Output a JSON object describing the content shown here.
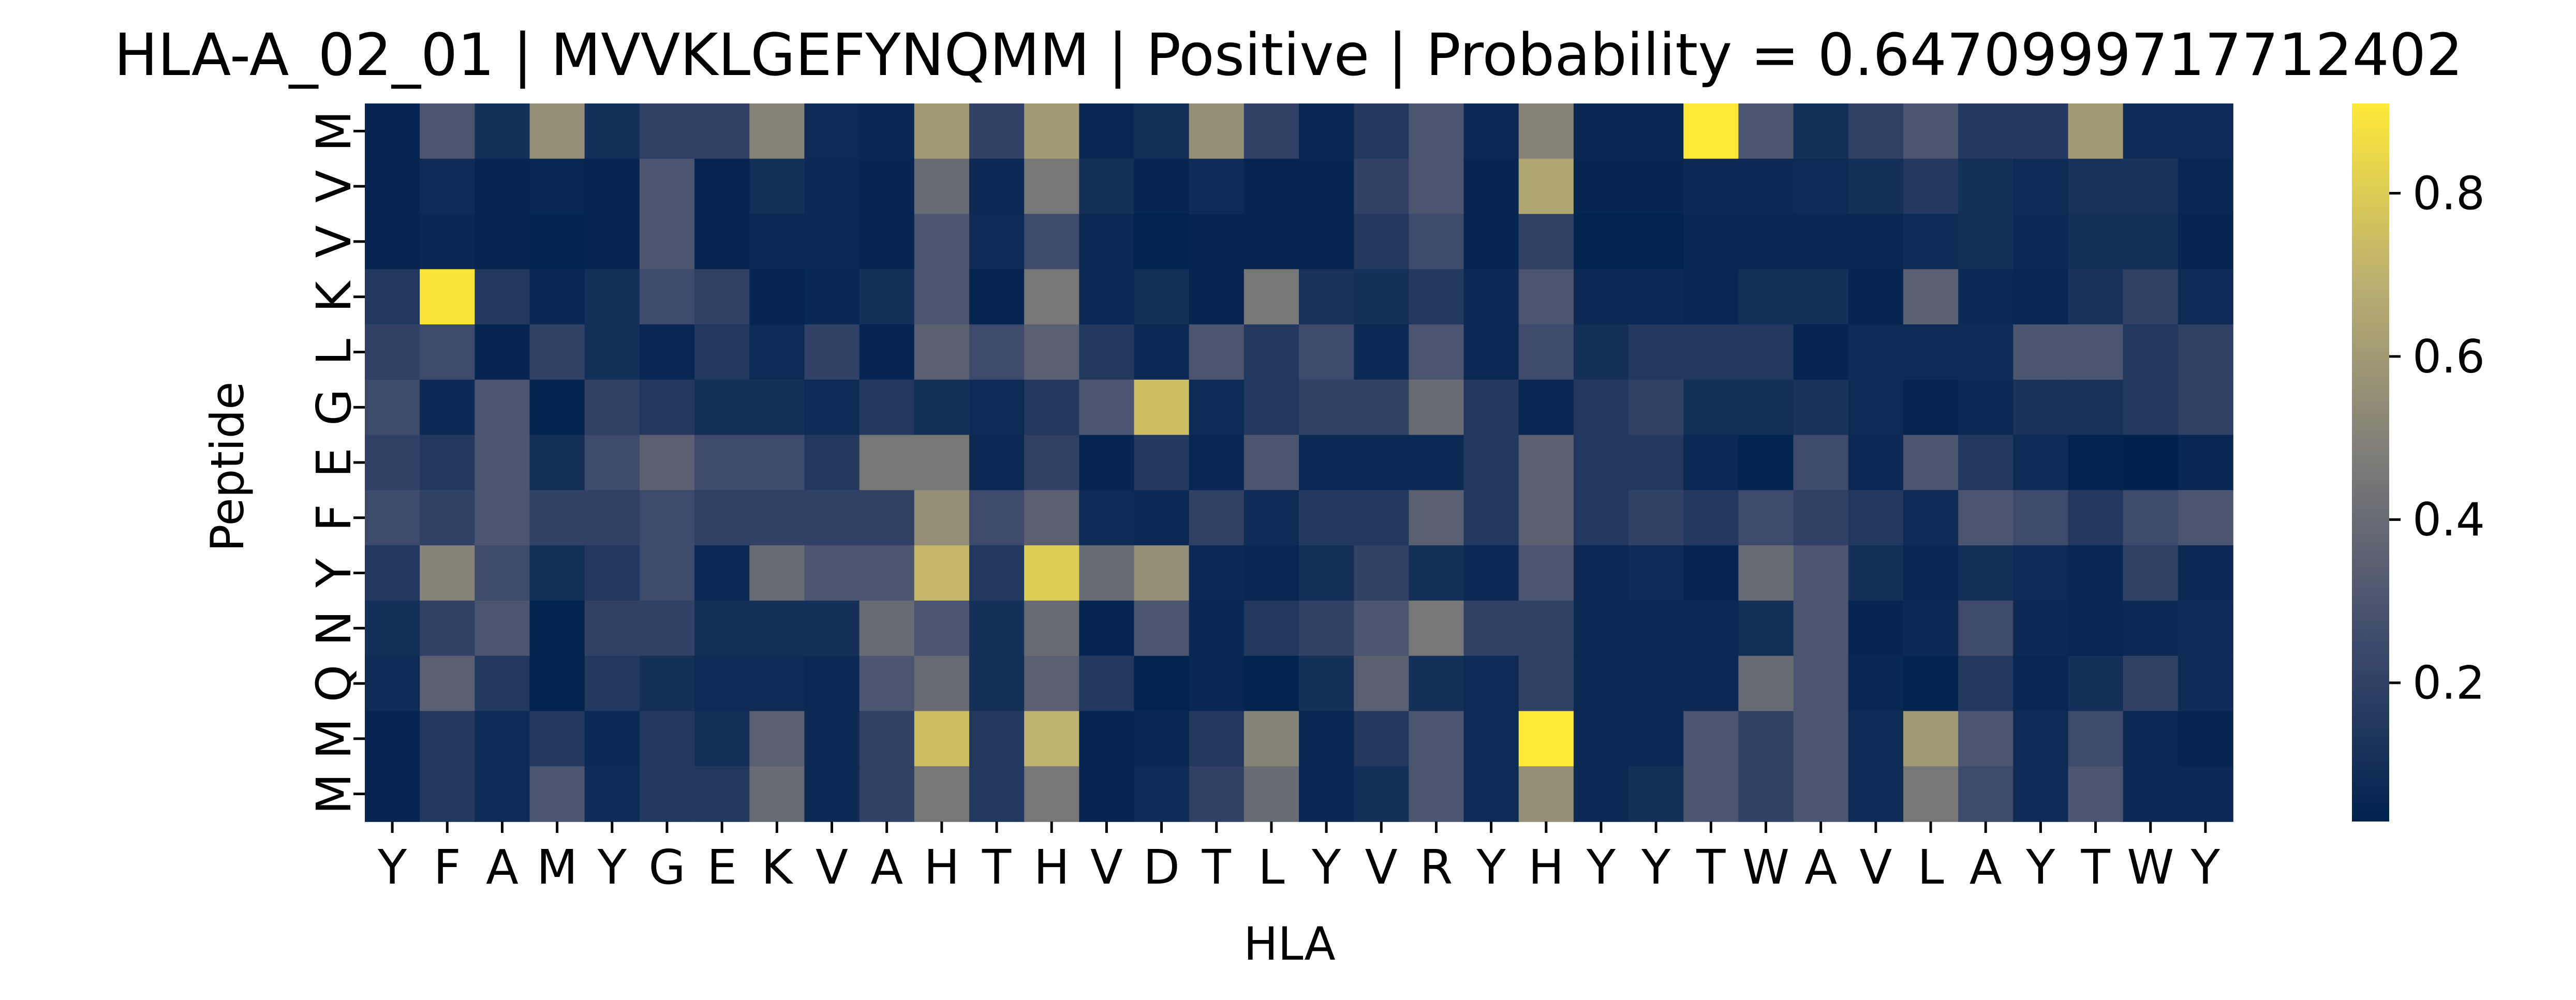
{
  "chart_data": {
    "type": "heatmap",
    "title": "HLA-A_02_01 | MVVKLGEFYNQMM | Positive | Probability = 0.6470999717712402",
    "xlabel": "HLA",
    "ylabel": "Peptide",
    "x_categories": [
      "Y",
      "F",
      "A",
      "M",
      "Y",
      "G",
      "E",
      "K",
      "V",
      "A",
      "H",
      "T",
      "H",
      "V",
      "D",
      "T",
      "L",
      "Y",
      "V",
      "R",
      "Y",
      "H",
      "Y",
      "Y",
      "T",
      "W",
      "A",
      "V",
      "L",
      "A",
      "Y",
      "T",
      "W",
      "Y"
    ],
    "y_categories": [
      "M",
      "V",
      "V",
      "K",
      "L",
      "G",
      "E",
      "F",
      "Y",
      "N",
      "Q",
      "M",
      "M"
    ],
    "colormap": "cividis",
    "colorbar": {
      "vmin": 0.03,
      "vmax": 0.91,
      "ticks": [
        "0.2",
        "0.4",
        "0.6",
        "0.8"
      ],
      "tick_values": [
        0.2,
        0.4,
        0.6,
        0.8
      ]
    },
    "values": [
      [
        0.05,
        0.3,
        0.1,
        0.55,
        0.1,
        0.2,
        0.2,
        0.5,
        0.08,
        0.06,
        0.6,
        0.2,
        0.6,
        0.06,
        0.1,
        0.55,
        0.2,
        0.06,
        0.15,
        0.3,
        0.07,
        0.5,
        0.06,
        0.06,
        0.91,
        0.3,
        0.1,
        0.2,
        0.3,
        0.15,
        0.15,
        0.6,
        0.08,
        0.08
      ],
      [
        0.05,
        0.08,
        0.05,
        0.06,
        0.05,
        0.3,
        0.05,
        0.1,
        0.07,
        0.05,
        0.4,
        0.07,
        0.45,
        0.1,
        0.05,
        0.08,
        0.05,
        0.05,
        0.2,
        0.3,
        0.05,
        0.65,
        0.05,
        0.05,
        0.07,
        0.07,
        0.08,
        0.1,
        0.15,
        0.1,
        0.08,
        0.12,
        0.12,
        0.06
      ],
      [
        0.05,
        0.06,
        0.05,
        0.04,
        0.05,
        0.3,
        0.05,
        0.07,
        0.07,
        0.05,
        0.3,
        0.08,
        0.25,
        0.07,
        0.04,
        0.05,
        0.05,
        0.05,
        0.15,
        0.25,
        0.05,
        0.2,
        0.04,
        0.04,
        0.06,
        0.06,
        0.06,
        0.06,
        0.08,
        0.1,
        0.07,
        0.1,
        0.1,
        0.05
      ],
      [
        0.15,
        0.9,
        0.15,
        0.06,
        0.1,
        0.25,
        0.2,
        0.05,
        0.06,
        0.1,
        0.3,
        0.05,
        0.45,
        0.07,
        0.1,
        0.05,
        0.45,
        0.12,
        0.1,
        0.15,
        0.07,
        0.3,
        0.07,
        0.07,
        0.06,
        0.1,
        0.1,
        0.05,
        0.35,
        0.07,
        0.06,
        0.12,
        0.2,
        0.08
      ],
      [
        0.2,
        0.25,
        0.05,
        0.2,
        0.1,
        0.06,
        0.15,
        0.08,
        0.2,
        0.05,
        0.35,
        0.25,
        0.35,
        0.15,
        0.07,
        0.3,
        0.15,
        0.25,
        0.07,
        0.3,
        0.07,
        0.25,
        0.1,
        0.15,
        0.15,
        0.15,
        0.05,
        0.08,
        0.08,
        0.08,
        0.3,
        0.3,
        0.15,
        0.2
      ],
      [
        0.25,
        0.07,
        0.3,
        0.04,
        0.2,
        0.15,
        0.1,
        0.1,
        0.08,
        0.15,
        0.1,
        0.08,
        0.15,
        0.3,
        0.75,
        0.08,
        0.15,
        0.2,
        0.2,
        0.4,
        0.15,
        0.06,
        0.15,
        0.2,
        0.1,
        0.1,
        0.12,
        0.08,
        0.05,
        0.07,
        0.12,
        0.12,
        0.15,
        0.2
      ],
      [
        0.2,
        0.15,
        0.3,
        0.1,
        0.25,
        0.35,
        0.25,
        0.25,
        0.15,
        0.45,
        0.45,
        0.07,
        0.2,
        0.05,
        0.15,
        0.06,
        0.3,
        0.07,
        0.07,
        0.07,
        0.15,
        0.35,
        0.15,
        0.15,
        0.07,
        0.04,
        0.25,
        0.07,
        0.3,
        0.15,
        0.08,
        0.04,
        0.03,
        0.06
      ],
      [
        0.25,
        0.2,
        0.3,
        0.2,
        0.2,
        0.25,
        0.2,
        0.2,
        0.2,
        0.2,
        0.55,
        0.25,
        0.35,
        0.08,
        0.07,
        0.2,
        0.08,
        0.15,
        0.15,
        0.35,
        0.15,
        0.35,
        0.15,
        0.2,
        0.15,
        0.25,
        0.2,
        0.15,
        0.08,
        0.3,
        0.25,
        0.15,
        0.25,
        0.3
      ],
      [
        0.15,
        0.5,
        0.25,
        0.1,
        0.15,
        0.25,
        0.07,
        0.4,
        0.3,
        0.3,
        0.72,
        0.15,
        0.8,
        0.4,
        0.55,
        0.07,
        0.06,
        0.1,
        0.2,
        0.1,
        0.07,
        0.3,
        0.07,
        0.08,
        0.05,
        0.4,
        0.3,
        0.1,
        0.06,
        0.1,
        0.08,
        0.06,
        0.2,
        0.07
      ],
      [
        0.1,
        0.2,
        0.3,
        0.04,
        0.2,
        0.2,
        0.1,
        0.1,
        0.1,
        0.4,
        0.3,
        0.1,
        0.4,
        0.05,
        0.3,
        0.06,
        0.15,
        0.2,
        0.3,
        0.45,
        0.2,
        0.2,
        0.07,
        0.07,
        0.07,
        0.1,
        0.3,
        0.05,
        0.07,
        0.25,
        0.07,
        0.06,
        0.07,
        0.08
      ],
      [
        0.08,
        0.35,
        0.15,
        0.04,
        0.15,
        0.1,
        0.08,
        0.08,
        0.07,
        0.3,
        0.4,
        0.1,
        0.35,
        0.15,
        0.04,
        0.06,
        0.04,
        0.1,
        0.35,
        0.1,
        0.08,
        0.2,
        0.07,
        0.07,
        0.07,
        0.4,
        0.3,
        0.06,
        0.04,
        0.15,
        0.06,
        0.1,
        0.2,
        0.08
      ],
      [
        0.05,
        0.15,
        0.08,
        0.15,
        0.07,
        0.15,
        0.1,
        0.35,
        0.07,
        0.2,
        0.75,
        0.15,
        0.7,
        0.05,
        0.06,
        0.15,
        0.5,
        0.06,
        0.15,
        0.3,
        0.08,
        0.91,
        0.07,
        0.07,
        0.3,
        0.2,
        0.3,
        0.08,
        0.6,
        0.3,
        0.08,
        0.25,
        0.07,
        0.05
      ],
      [
        0.05,
        0.15,
        0.08,
        0.3,
        0.08,
        0.15,
        0.15,
        0.4,
        0.07,
        0.2,
        0.45,
        0.15,
        0.45,
        0.05,
        0.08,
        0.2,
        0.4,
        0.06,
        0.1,
        0.3,
        0.08,
        0.55,
        0.07,
        0.1,
        0.3,
        0.2,
        0.3,
        0.08,
        0.45,
        0.25,
        0.08,
        0.3,
        0.07,
        0.07
      ]
    ]
  }
}
